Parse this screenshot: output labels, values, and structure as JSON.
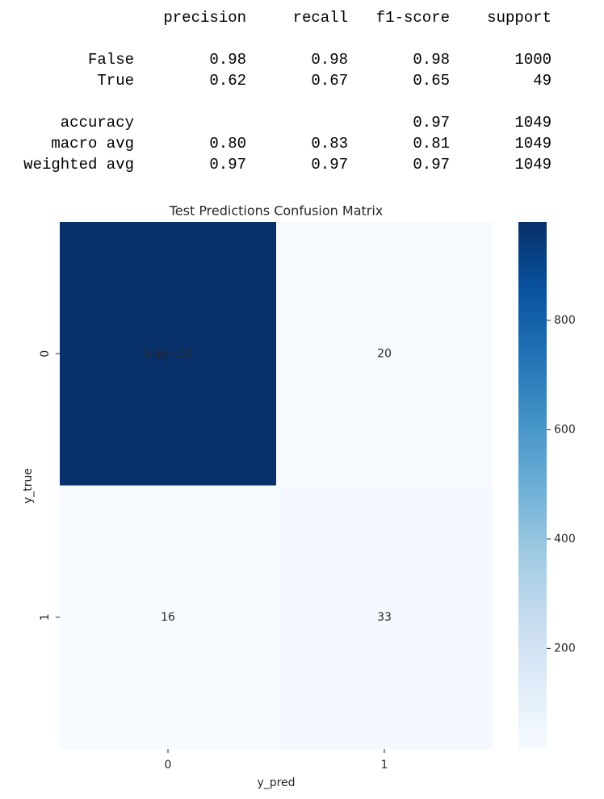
{
  "report": {
    "columns": [
      "precision",
      "recall",
      "f1-score",
      "support"
    ],
    "rows": [
      [
        "False",
        "0.98",
        "0.98",
        "0.98",
        "1000"
      ],
      [
        "True",
        "0.62",
        "0.67",
        "0.65",
        "49"
      ],
      [
        "accuracy",
        null,
        null,
        "0.97",
        "1049"
      ],
      [
        "macro avg",
        "0.80",
        "0.83",
        "0.81",
        "1049"
      ],
      [
        "weighted avg",
        "0.97",
        "0.97",
        "0.97",
        "1049"
      ]
    ]
  },
  "chart_data": {
    "type": "heatmap",
    "title": "Test Predictions Confusion Matrix",
    "x_label": "y_pred",
    "y_label": "y_true",
    "x_categories": [
      "0",
      "1"
    ],
    "y_categories": [
      "0",
      "1"
    ],
    "values": [
      [
        980,
        20
      ],
      [
        16,
        33
      ]
    ],
    "value_labels": [
      [
        "9.8e+02",
        "20"
      ],
      [
        "16",
        "33"
      ]
    ],
    "colormap": "Blues",
    "colorbar": {
      "ylim": [
        16,
        980
      ],
      "yticks": [
        200,
        400,
        600,
        800
      ]
    }
  }
}
